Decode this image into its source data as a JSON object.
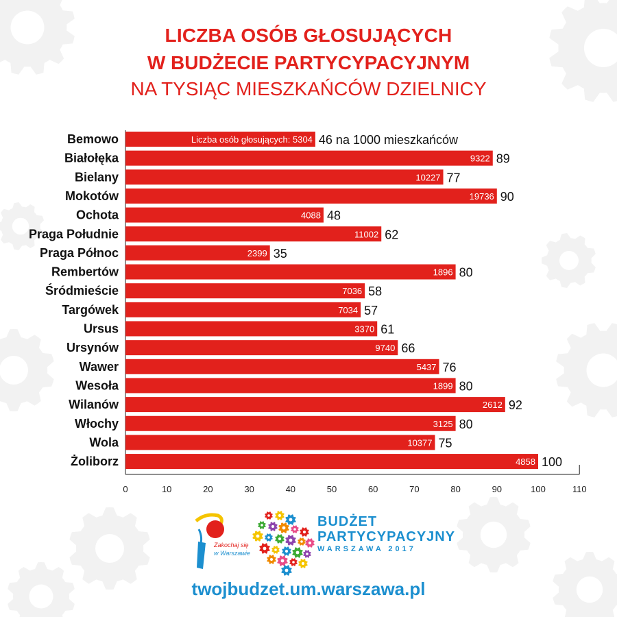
{
  "header": {
    "line1": "LICZBA OSÓB GŁOSUJĄCYCH",
    "line2": "W BUDŻECIE PARTYCYPACYJNYM",
    "line3": "NA TYSIĄC MIESZKAŃCÓW DZIELNICY"
  },
  "chart_data": {
    "type": "bar",
    "orientation": "horizontal",
    "title": "LICZBA OSÓB GŁOSUJĄCYCH W BUDŻECIE PARTYCYPACYJNYM NA TYSIĄC MIESZKAŃCÓW DZIELNICY",
    "categories": [
      "Bemowo",
      "Białołęka",
      "Bielany",
      "Mokotów",
      "Ochota",
      "Praga Południe",
      "Praga Północ",
      "Rembertów",
      "Śródmieście",
      "Targówek",
      "Ursus",
      "Ursynów",
      "Wawer",
      "Wesoła",
      "Wilanów",
      "Włochy",
      "Wola",
      "Żoliborz"
    ],
    "series": [
      {
        "values": [
          46,
          89,
          77,
          90,
          48,
          62,
          35,
          80,
          58,
          57,
          61,
          66,
          76,
          80,
          92,
          80,
          75,
          100
        ]
      }
    ],
    "voters": [
      5304,
      9322,
      10227,
      19736,
      4088,
      11002,
      2399,
      1896,
      7036,
      7034,
      3370,
      9740,
      5437,
      1899,
      2612,
      3125,
      10377,
      4858
    ],
    "first_inner_prefix": "Liczba osób głosujących: ",
    "first_outer_suffix": " na 1000 mieszkańców",
    "xlim": [
      0,
      110
    ],
    "xticks": [
      0,
      10,
      20,
      30,
      40,
      50,
      60,
      70,
      80,
      90,
      100,
      110
    ],
    "bar_color": "#e2211c",
    "grid": false
  },
  "footer": {
    "logo_left_text1": "Zakochaj się",
    "logo_left_text2": "w Warszawie",
    "logo_right_line1": "BUDŻET",
    "logo_right_line2": "PARTYCYPACYJNY",
    "logo_right_line3": "WARSZAWA 2017",
    "url": "twojbudzet.um.warszawa.pl"
  }
}
